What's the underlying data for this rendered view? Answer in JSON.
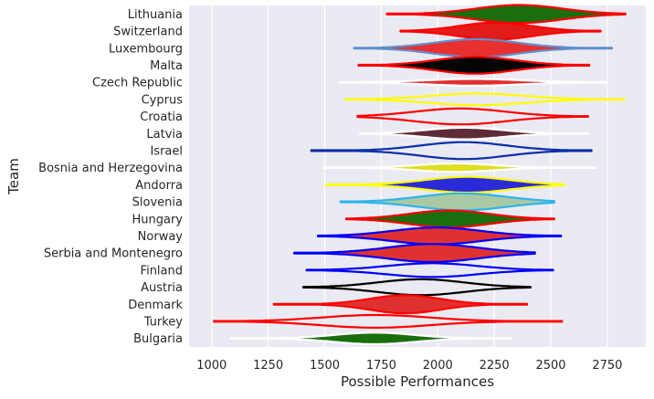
{
  "chart_data": {
    "type": "violin",
    "xlabel": "Possible Performances",
    "ylabel": "Team",
    "xlim": [
      900,
      2920
    ],
    "xticks": [
      1000,
      1250,
      1500,
      1750,
      2000,
      2250,
      2500,
      2750
    ],
    "grid": true,
    "background": "#EAEAF2",
    "series": [
      {
        "team": "Lithuania",
        "min": 1775,
        "max": 2830,
        "median": 2360,
        "spread": 190,
        "amp": 0.85,
        "fill": "#1a6e0e",
        "edge": "#ff0000"
      },
      {
        "team": "Switzerland",
        "min": 1835,
        "max": 2720,
        "median": 2255,
        "spread": 160,
        "amp": 0.8,
        "fill": "#e31b1b",
        "edge": "#ff0000"
      },
      {
        "team": "Luxembourg",
        "min": 1630,
        "max": 2770,
        "median": 2170,
        "spread": 185,
        "amp": 0.85,
        "fill": "#e83030",
        "edge": "#5e8fd0"
      },
      {
        "team": "Malta",
        "min": 1650,
        "max": 2670,
        "median": 2165,
        "spread": 175,
        "amp": 0.8,
        "fill": "#050505",
        "edge": "#ff0000"
      },
      {
        "team": "Czech Republic",
        "min": 1565,
        "max": 2745,
        "median": 2160,
        "spread": 210,
        "amp": 0.32,
        "fill": "#e03131",
        "edge": "#ffffff"
      },
      {
        "team": "Cyprus",
        "min": 1590,
        "max": 2825,
        "median": 2175,
        "spread": 210,
        "amp": 0.55,
        "fill": "#eaeaf2",
        "edge": "#ffff00"
      },
      {
        "team": "Croatia",
        "min": 1645,
        "max": 2665,
        "median": 2100,
        "spread": 200,
        "amp": 0.75,
        "fill": "#eaeaf2",
        "edge": "#ff0000"
      },
      {
        "team": "Latvia",
        "min": 1655,
        "max": 2665,
        "median": 2115,
        "spread": 170,
        "amp": 0.55,
        "fill": "#5e2b38",
        "edge": "#ffffff"
      },
      {
        "team": "Israel",
        "min": 1440,
        "max": 2680,
        "median": 2115,
        "spread": 190,
        "amp": 0.8,
        "fill": "#eaeaf2",
        "edge": "#0b2fa8"
      },
      {
        "team": "Bosnia and Herzegovina",
        "min": 1495,
        "max": 2700,
        "median": 2080,
        "spread": 170,
        "amp": 0.4,
        "fill": "#dede22",
        "edge": "#ffffff"
      },
      {
        "team": "Andorra",
        "min": 1505,
        "max": 2560,
        "median": 2130,
        "spread": 185,
        "amp": 0.75,
        "fill": "#2a2ad8",
        "edge": "#ffff00"
      },
      {
        "team": "Slovenia",
        "min": 1570,
        "max": 2515,
        "median": 2110,
        "spread": 190,
        "amp": 0.8,
        "fill": "#a9c9a4",
        "edge": "#2bb5ea"
      },
      {
        "team": "Hungary",
        "min": 1595,
        "max": 2515,
        "median": 2050,
        "spread": 175,
        "amp": 0.8,
        "fill": "#1a6e0e",
        "edge": "#ff0000"
      },
      {
        "team": "Norway",
        "min": 1470,
        "max": 2545,
        "median": 1995,
        "spread": 195,
        "amp": 0.8,
        "fill": "#e03131",
        "edge": "#0000ff"
      },
      {
        "team": "Serbia and Montenegro",
        "min": 1365,
        "max": 2430,
        "median": 1975,
        "spread": 200,
        "amp": 0.85,
        "fill": "#e03131",
        "edge": "#0000ff"
      },
      {
        "team": "Finland",
        "min": 1420,
        "max": 2510,
        "median": 1975,
        "spread": 200,
        "amp": 0.65,
        "fill": "#eaeaf2",
        "edge": "#0000ff"
      },
      {
        "team": "Austria",
        "min": 1405,
        "max": 2410,
        "median": 1925,
        "spread": 190,
        "amp": 0.75,
        "fill": "#eaeaf2",
        "edge": "#000000"
      },
      {
        "team": "Denmark",
        "min": 1275,
        "max": 2395,
        "median": 1855,
        "spread": 155,
        "amp": 0.85,
        "fill": "#e03131",
        "edge": "#ff0000"
      },
      {
        "team": "Turkey",
        "min": 1010,
        "max": 2550,
        "median": 1725,
        "spread": 240,
        "amp": 0.6,
        "fill": "#eaeaf2",
        "edge": "#ff0000"
      },
      {
        "team": "Bulgaria",
        "min": 1085,
        "max": 2325,
        "median": 1720,
        "spread": 175,
        "amp": 0.55,
        "fill": "#1a6e0e",
        "edge": "#ffffff"
      }
    ]
  }
}
